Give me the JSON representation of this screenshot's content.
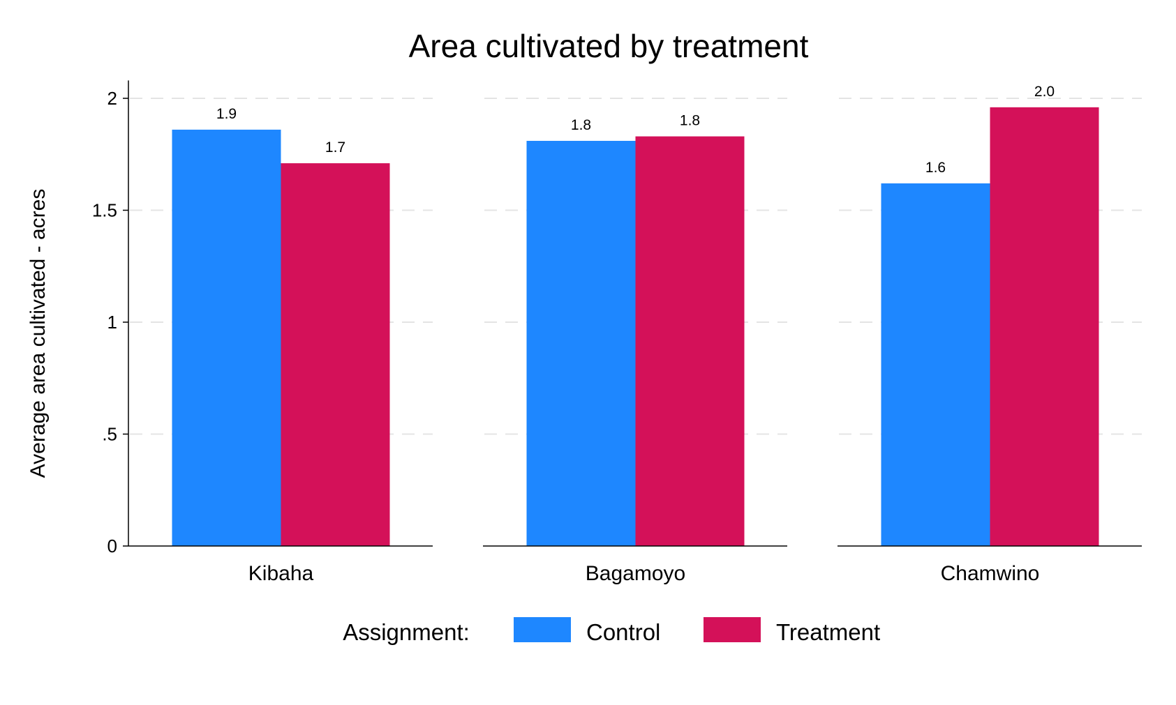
{
  "chart_data": {
    "type": "bar",
    "title": "Area cultivated by treatment",
    "ylabel": "Average area cultivated - acres",
    "xlabel": "",
    "categories": [
      "Kibaha",
      "Bagamoyo",
      "Chamwino"
    ],
    "series": [
      {
        "name": "Control",
        "color": "#1e87ff",
        "values": [
          1.86,
          1.81,
          1.62
        ],
        "labels": [
          "1.9",
          "1.8",
          "1.6"
        ]
      },
      {
        "name": "Treatment",
        "color": "#d41159",
        "values": [
          1.71,
          1.83,
          1.96
        ],
        "labels": [
          "1.7",
          "1.8",
          "2.0"
        ]
      }
    ],
    "ylim": [
      0,
      2.08
    ],
    "yticks": [
      0,
      0.5,
      1,
      1.5,
      2
    ],
    "ytick_labels": [
      "0",
      ".5",
      "1",
      "1.5",
      "2"
    ],
    "grid": true,
    "legend": {
      "title": "Assignment:",
      "position": "bottom"
    }
  }
}
